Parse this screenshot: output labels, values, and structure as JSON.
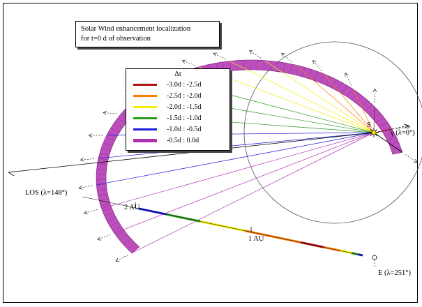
{
  "title": {
    "line1": "Solar Wind enhancement localization",
    "line2": "for t=0 d of observation"
  },
  "legend": {
    "header": "Δt",
    "entries": [
      {
        "label": "-3.0d : -2.5d",
        "color": "#b01010"
      },
      {
        "label": "-2.5d : -2.0d",
        "color": "#ff7a00"
      },
      {
        "label": "-2.0d : -1.5d",
        "color": "#f2ee00"
      },
      {
        "label": "-1.5d : -1.0d",
        "color": "#2a9a1a"
      },
      {
        "label": "-1.0d : -0.5d",
        "color": "#1a1adc"
      },
      {
        "label": "-0.5d :  0.0d",
        "color": "#b030b0"
      }
    ]
  },
  "labels": {
    "sun": "S",
    "vernal": "γ (λ=0°)",
    "los": "LOS (λ=148°)",
    "au2": "2 AU",
    "au1": "1 AU",
    "earth": "E (λ=251°)"
  },
  "colors": {
    "band": "#b030b0",
    "rays": [
      "#b01010",
      "#ff7a00",
      "#f2ee00",
      "#2a9a1a",
      "#1a1adc",
      "#b030b0"
    ]
  }
}
